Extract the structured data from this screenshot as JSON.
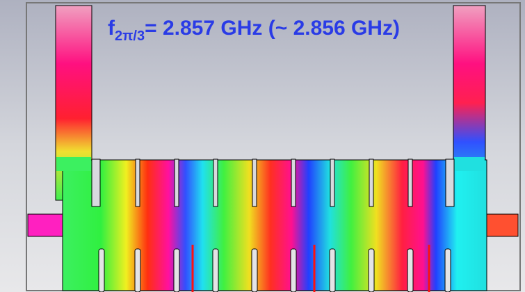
{
  "label": {
    "symbol": "f",
    "subscript": "2π/3",
    "text": "= 2.857 GHz (~ 2.856 GHz)"
  }
}
